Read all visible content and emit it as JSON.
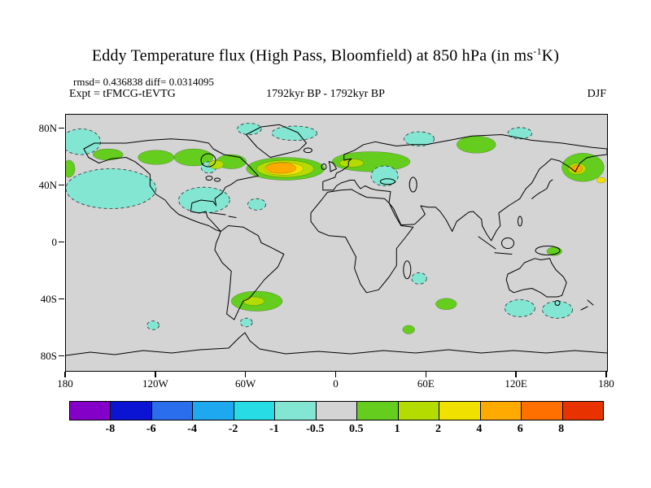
{
  "title": {
    "text": "Eddy Temperature flux (High Pass, Bloomfield) at 850 hPa (in ms",
    "sup": "-1",
    "tail": "K)"
  },
  "header": {
    "stats": "rmsd= 0.436838 diff= 0.0314095",
    "experiment": "Expt = tFMCG-tEVTG",
    "period": "1792kyr BP - 1792kyr BP",
    "season": "DJF"
  },
  "map": {
    "background": "#d4d4d4",
    "lon_range": [
      -180,
      180
    ],
    "lat_range": [
      -90,
      90
    ],
    "x_ticks": [
      {
        "value": -180,
        "label": "180"
      },
      {
        "value": -120,
        "label": "120W"
      },
      {
        "value": -60,
        "label": "60W"
      },
      {
        "value": 0,
        "label": "0"
      },
      {
        "value": 60,
        "label": "60E"
      },
      {
        "value": 120,
        "label": "120E"
      },
      {
        "value": 180,
        "label": "180"
      }
    ],
    "y_ticks": [
      {
        "value": 80,
        "label": "80N"
      },
      {
        "value": 40,
        "label": "40N"
      },
      {
        "value": 0,
        "label": "0"
      },
      {
        "value": -40,
        "label": "40S"
      },
      {
        "value": -80,
        "label": "80S"
      }
    ]
  },
  "chart_data": {
    "type": "heatmap",
    "subtype": "filled-contour-world-map",
    "title": "Eddy Temperature flux (High Pass, Bloomfield) at 850 hPa (in ms-1K)",
    "variable": "Eddy Temperature flux (High Pass, Bloomfield)",
    "pressure_level": "850 hPa",
    "units": "ms-1K",
    "season": "DJF",
    "experiment": "tFMCG-tEVTG",
    "period": "1792kyr BP - 1792kyr BP",
    "rmsd": 0.436838,
    "diff": 0.0314095,
    "contour_levels": [
      -8,
      -6,
      -4,
      -2,
      -1,
      -0.5,
      0.5,
      1,
      2,
      4,
      6,
      8
    ],
    "palette": [
      "#8400c8",
      "#0a14d2",
      "#2a6eee",
      "#1ea8f0",
      "#28dce6",
      "#82e6d2",
      "#d4d4d4",
      "#64cd1e",
      "#b4dc00",
      "#f0e100",
      "#ffaa00",
      "#ff7000",
      "#e83200"
    ],
    "background_value_color": "#d4d4d4",
    "legend_position": "bottom",
    "anomalies": [
      {
        "region": "bering-sea",
        "lon": -170,
        "lat": 71,
        "rlon": 13,
        "rlat": 9,
        "value": -0.75
      },
      {
        "region": "north-pacific",
        "lon": -150,
        "lat": 38,
        "rlon": 30,
        "rlat": 14,
        "value": -0.75
      },
      {
        "region": "alaska",
        "lon": -152,
        "lat": 62,
        "rlon": 10,
        "rlat": 4,
        "value": 0.75
      },
      {
        "region": "northwest-canada",
        "lon": -120,
        "lat": 60,
        "rlon": 12,
        "rlat": 5,
        "value": 0.75
      },
      {
        "region": "central-canada",
        "lon": -95,
        "lat": 60,
        "rlon": 13,
        "rlat": 6,
        "value": 0.75
      },
      {
        "region": "hudson-bay",
        "lon": -85,
        "lat": 53,
        "rlon": 5,
        "rlat": 4,
        "value": -0.75
      },
      {
        "region": "east-canada",
        "lon": -70,
        "lat": 57,
        "rlon": 10,
        "rlat": 5,
        "value": 0.75
      },
      {
        "region": "labrador",
        "lon": -80,
        "lat": 55,
        "rlon": 5,
        "rlat": 3,
        "value": 1.5
      },
      {
        "region": "north-greenland",
        "lon": -58,
        "lat": 80,
        "rlon": 8,
        "rlat": 4,
        "value": -0.75
      },
      {
        "region": "greenland-sea",
        "lon": -28,
        "lat": 77,
        "rlon": 15,
        "rlat": 5,
        "value": -0.75
      },
      {
        "region": "north-atlantic-outer",
        "lon": -34,
        "lat": 52,
        "rlon": 26,
        "rlat": 8,
        "value": 0.75
      },
      {
        "region": "north-atlantic-mid",
        "lon": -34,
        "lat": 52,
        "rlon": 19,
        "rlat": 6,
        "value": 1.5
      },
      {
        "region": "north-atlantic-inner",
        "lon": -35,
        "lat": 52,
        "rlon": 13,
        "rlat": 4.5,
        "value": 3
      },
      {
        "region": "north-atlantic-core",
        "lon": -37,
        "lat": 52.5,
        "rlon": 10,
        "rlat": 3.8,
        "value": 5
      },
      {
        "region": "europe",
        "lon": 23,
        "lat": 57,
        "rlon": 26,
        "rlat": 7,
        "value": 0.75
      },
      {
        "region": "north-sea",
        "lon": 10,
        "lat": 56,
        "rlon": 8,
        "rlat": 3,
        "value": 1.5
      },
      {
        "region": "east-europe",
        "lon": 32,
        "lat": 47,
        "rlon": 9,
        "rlat": 7,
        "value": -0.75
      },
      {
        "region": "north-russia",
        "lon": 55,
        "lat": 73,
        "rlon": 10,
        "rlat": 5,
        "value": -0.75
      },
      {
        "region": "central-siberia",
        "lon": 93,
        "lat": 69,
        "rlon": 13,
        "rlat": 6,
        "value": 0.75
      },
      {
        "region": "lena-arctic",
        "lon": 122,
        "lat": 77,
        "rlon": 8,
        "rlat": 4,
        "value": -0.75
      },
      {
        "region": "northeast-asia",
        "lon": 164,
        "lat": 53,
        "rlon": 14,
        "rlat": 10,
        "value": 0.75
      },
      {
        "region": "okhotsk-outer",
        "lon": 160,
        "lat": 52,
        "rlon": 6,
        "rlat": 4,
        "value": 1.5
      },
      {
        "region": "okhotsk-core",
        "lon": 160,
        "lat": 52,
        "rlon": 3.5,
        "rlat": 2.5,
        "value": 5
      },
      {
        "region": "date-line-north",
        "lon": 176,
        "lat": 44,
        "rlon": 3,
        "rlat": 2,
        "value": 3
      },
      {
        "region": "date-line-west",
        "lon": -178,
        "lat": 52,
        "rlon": 4,
        "rlat": 6,
        "value": 0.75
      },
      {
        "region": "gulf-of-mexico",
        "lon": -88,
        "lat": 30,
        "rlon": 17,
        "rlat": 9,
        "value": -0.75
      },
      {
        "region": "west-atlantic",
        "lon": -53,
        "lat": 27,
        "rlon": 6,
        "rlat": 4,
        "value": -0.75
      },
      {
        "region": "south-indian-tropics",
        "lon": 55,
        "lat": -25,
        "rlon": 5,
        "rlat": 4,
        "value": -0.75
      },
      {
        "region": "new-guinea",
        "lon": 145,
        "lat": -6,
        "rlon": 5,
        "rlat": 3,
        "value": 0.75
      },
      {
        "region": "argentine-sea",
        "lon": -53,
        "lat": -41,
        "rlon": 17,
        "rlat": 7,
        "value": 0.75
      },
      {
        "region": "argentine-sea-core",
        "lon": -55,
        "lat": -41,
        "rlon": 7,
        "rlat": 3,
        "value": 1.5
      },
      {
        "region": "south-indian",
        "lon": 73,
        "lat": -43,
        "rlon": 7,
        "rlat": 4,
        "value": 0.75
      },
      {
        "region": "south-australia-west",
        "lon": 122,
        "lat": -46,
        "rlon": 10,
        "rlat": 6,
        "value": -0.75
      },
      {
        "region": "south-australia-east",
        "lon": 147,
        "lat": -47,
        "rlon": 10,
        "rlat": 6,
        "value": -0.75
      },
      {
        "region": "drake-passage",
        "lon": -60,
        "lat": -56,
        "rlon": 4,
        "rlat": 3,
        "value": -0.75
      },
      {
        "region": "south-atlantic",
        "lon": 48,
        "lat": -61,
        "rlon": 4,
        "rlat": 3,
        "value": 0.75
      },
      {
        "region": "south-pacific",
        "lon": -122,
        "lat": -58,
        "rlon": 4,
        "rlat": 3,
        "value": -0.75
      }
    ]
  }
}
